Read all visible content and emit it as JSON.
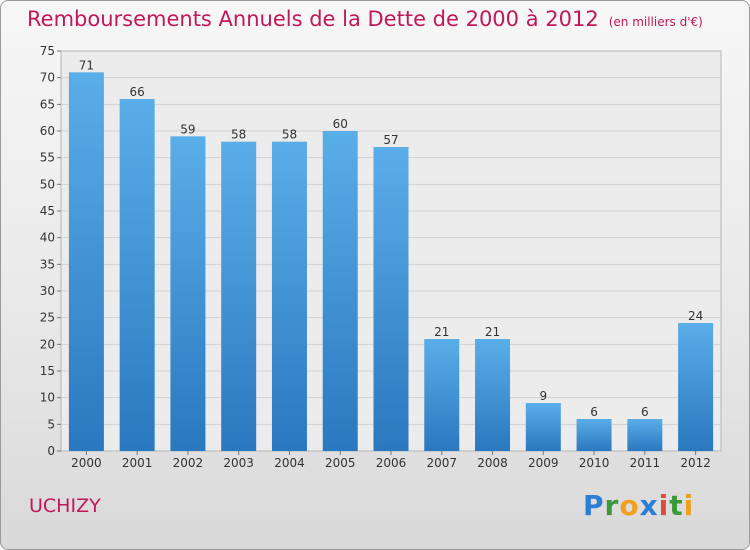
{
  "header": {
    "title": "Remboursements Annuels de la Dette de 2000 à 2012",
    "subtitle": "(en milliers d'€)"
  },
  "commune": "UCHIZY",
  "logo": {
    "letters": [
      "P",
      "r",
      "o",
      "x",
      "i",
      "t",
      "i"
    ],
    "colors": [
      "#2a7fd4",
      "#3a9a3a",
      "#f0a020",
      "#2a7fd4",
      "#e04a3a",
      "#3a9a3a",
      "#f0a020"
    ]
  },
  "colors": {
    "bar_top": "#5aaee8",
    "bar_bottom": "#2a78bf",
    "title": "#c2185b"
  },
  "chart_data": {
    "type": "bar",
    "categories": [
      "2000",
      "2001",
      "2002",
      "2003",
      "2004",
      "2005",
      "2006",
      "2007",
      "2008",
      "2009",
      "2010",
      "2011",
      "2012"
    ],
    "values": [
      71,
      66,
      59,
      58,
      58,
      60,
      57,
      21,
      21,
      9,
      6,
      6,
      24
    ],
    "ylim": [
      0,
      75
    ],
    "yticks": [
      0,
      5,
      10,
      15,
      20,
      25,
      30,
      35,
      40,
      45,
      50,
      55,
      60,
      65,
      70,
      75
    ],
    "grid": true
  }
}
